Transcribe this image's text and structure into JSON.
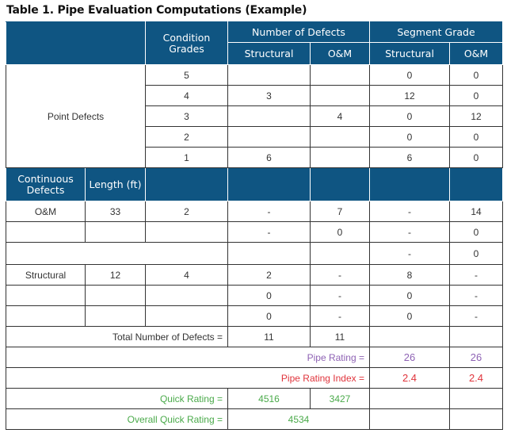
{
  "title": "Table 1. Pipe Evaluation Computations (Example)",
  "header": {
    "condition_grades": "Condition Grades",
    "number_of_defects": "Number of Defects",
    "segment_grade": "Segment Grade",
    "structural": "Structural",
    "om": "O&M"
  },
  "point_defects": {
    "label": "Point Defects",
    "rows": [
      {
        "grade": "5",
        "nd_struct": "",
        "nd_om": "",
        "sg_struct": "0",
        "sg_om": "0"
      },
      {
        "grade": "4",
        "nd_struct": "3",
        "nd_om": "",
        "sg_struct": "12",
        "sg_om": "0"
      },
      {
        "grade": "3",
        "nd_struct": "",
        "nd_om": "4",
        "sg_struct": "0",
        "sg_om": "12"
      },
      {
        "grade": "2",
        "nd_struct": "",
        "nd_om": "",
        "sg_struct": "0",
        "sg_om": "0"
      },
      {
        "grade": "1",
        "nd_struct": "6",
        "nd_om": "",
        "sg_struct": "6",
        "sg_om": "0"
      }
    ]
  },
  "continuous": {
    "header": "Continuous Defects",
    "length_header": "Length (ft)",
    "rows": [
      {
        "type": "O&M",
        "length": "33",
        "grade": "2",
        "nd_struct": "-",
        "nd_om": "7",
        "sg_struct": "-",
        "sg_om": "14"
      },
      {
        "type": "",
        "length": "",
        "grade": "",
        "nd_struct": "-",
        "nd_om": "0",
        "sg_struct": "-",
        "sg_om": "0"
      },
      {
        "type": "",
        "length": "",
        "grade": "",
        "nd_struct": "",
        "nd_om": "",
        "sg_struct": "-",
        "sg_om": "0"
      },
      {
        "type": "Structural",
        "length": "12",
        "grade": "4",
        "nd_struct": "2",
        "nd_om": "-",
        "sg_struct": "8",
        "sg_om": "-"
      },
      {
        "type": "",
        "length": "",
        "grade": "",
        "nd_struct": "0",
        "nd_om": "-",
        "sg_struct": "0",
        "sg_om": "-"
      },
      {
        "type": "",
        "length": "",
        "grade": "",
        "nd_struct": "0",
        "nd_om": "-",
        "sg_struct": "0",
        "sg_om": "-"
      }
    ]
  },
  "totals": {
    "label": "Total Number of Defects =",
    "struct": "11",
    "om": "11"
  },
  "pipe_rating": {
    "label": "Pipe Rating =",
    "struct": "26",
    "om": "26"
  },
  "pipe_rating_index": {
    "label": "Pipe Rating Index =",
    "struct": "2.4",
    "om": "2.4"
  },
  "quick_rating": {
    "label": "Quick Rating =",
    "struct": "4516",
    "om": "3427"
  },
  "overall_quick_rating": {
    "label": "Overall Quick Rating =",
    "value": "4534"
  },
  "colors": {
    "header": "#0f5582",
    "purple": "#8e62b4",
    "red": "#e0343c",
    "green": "#4aaa4a"
  }
}
